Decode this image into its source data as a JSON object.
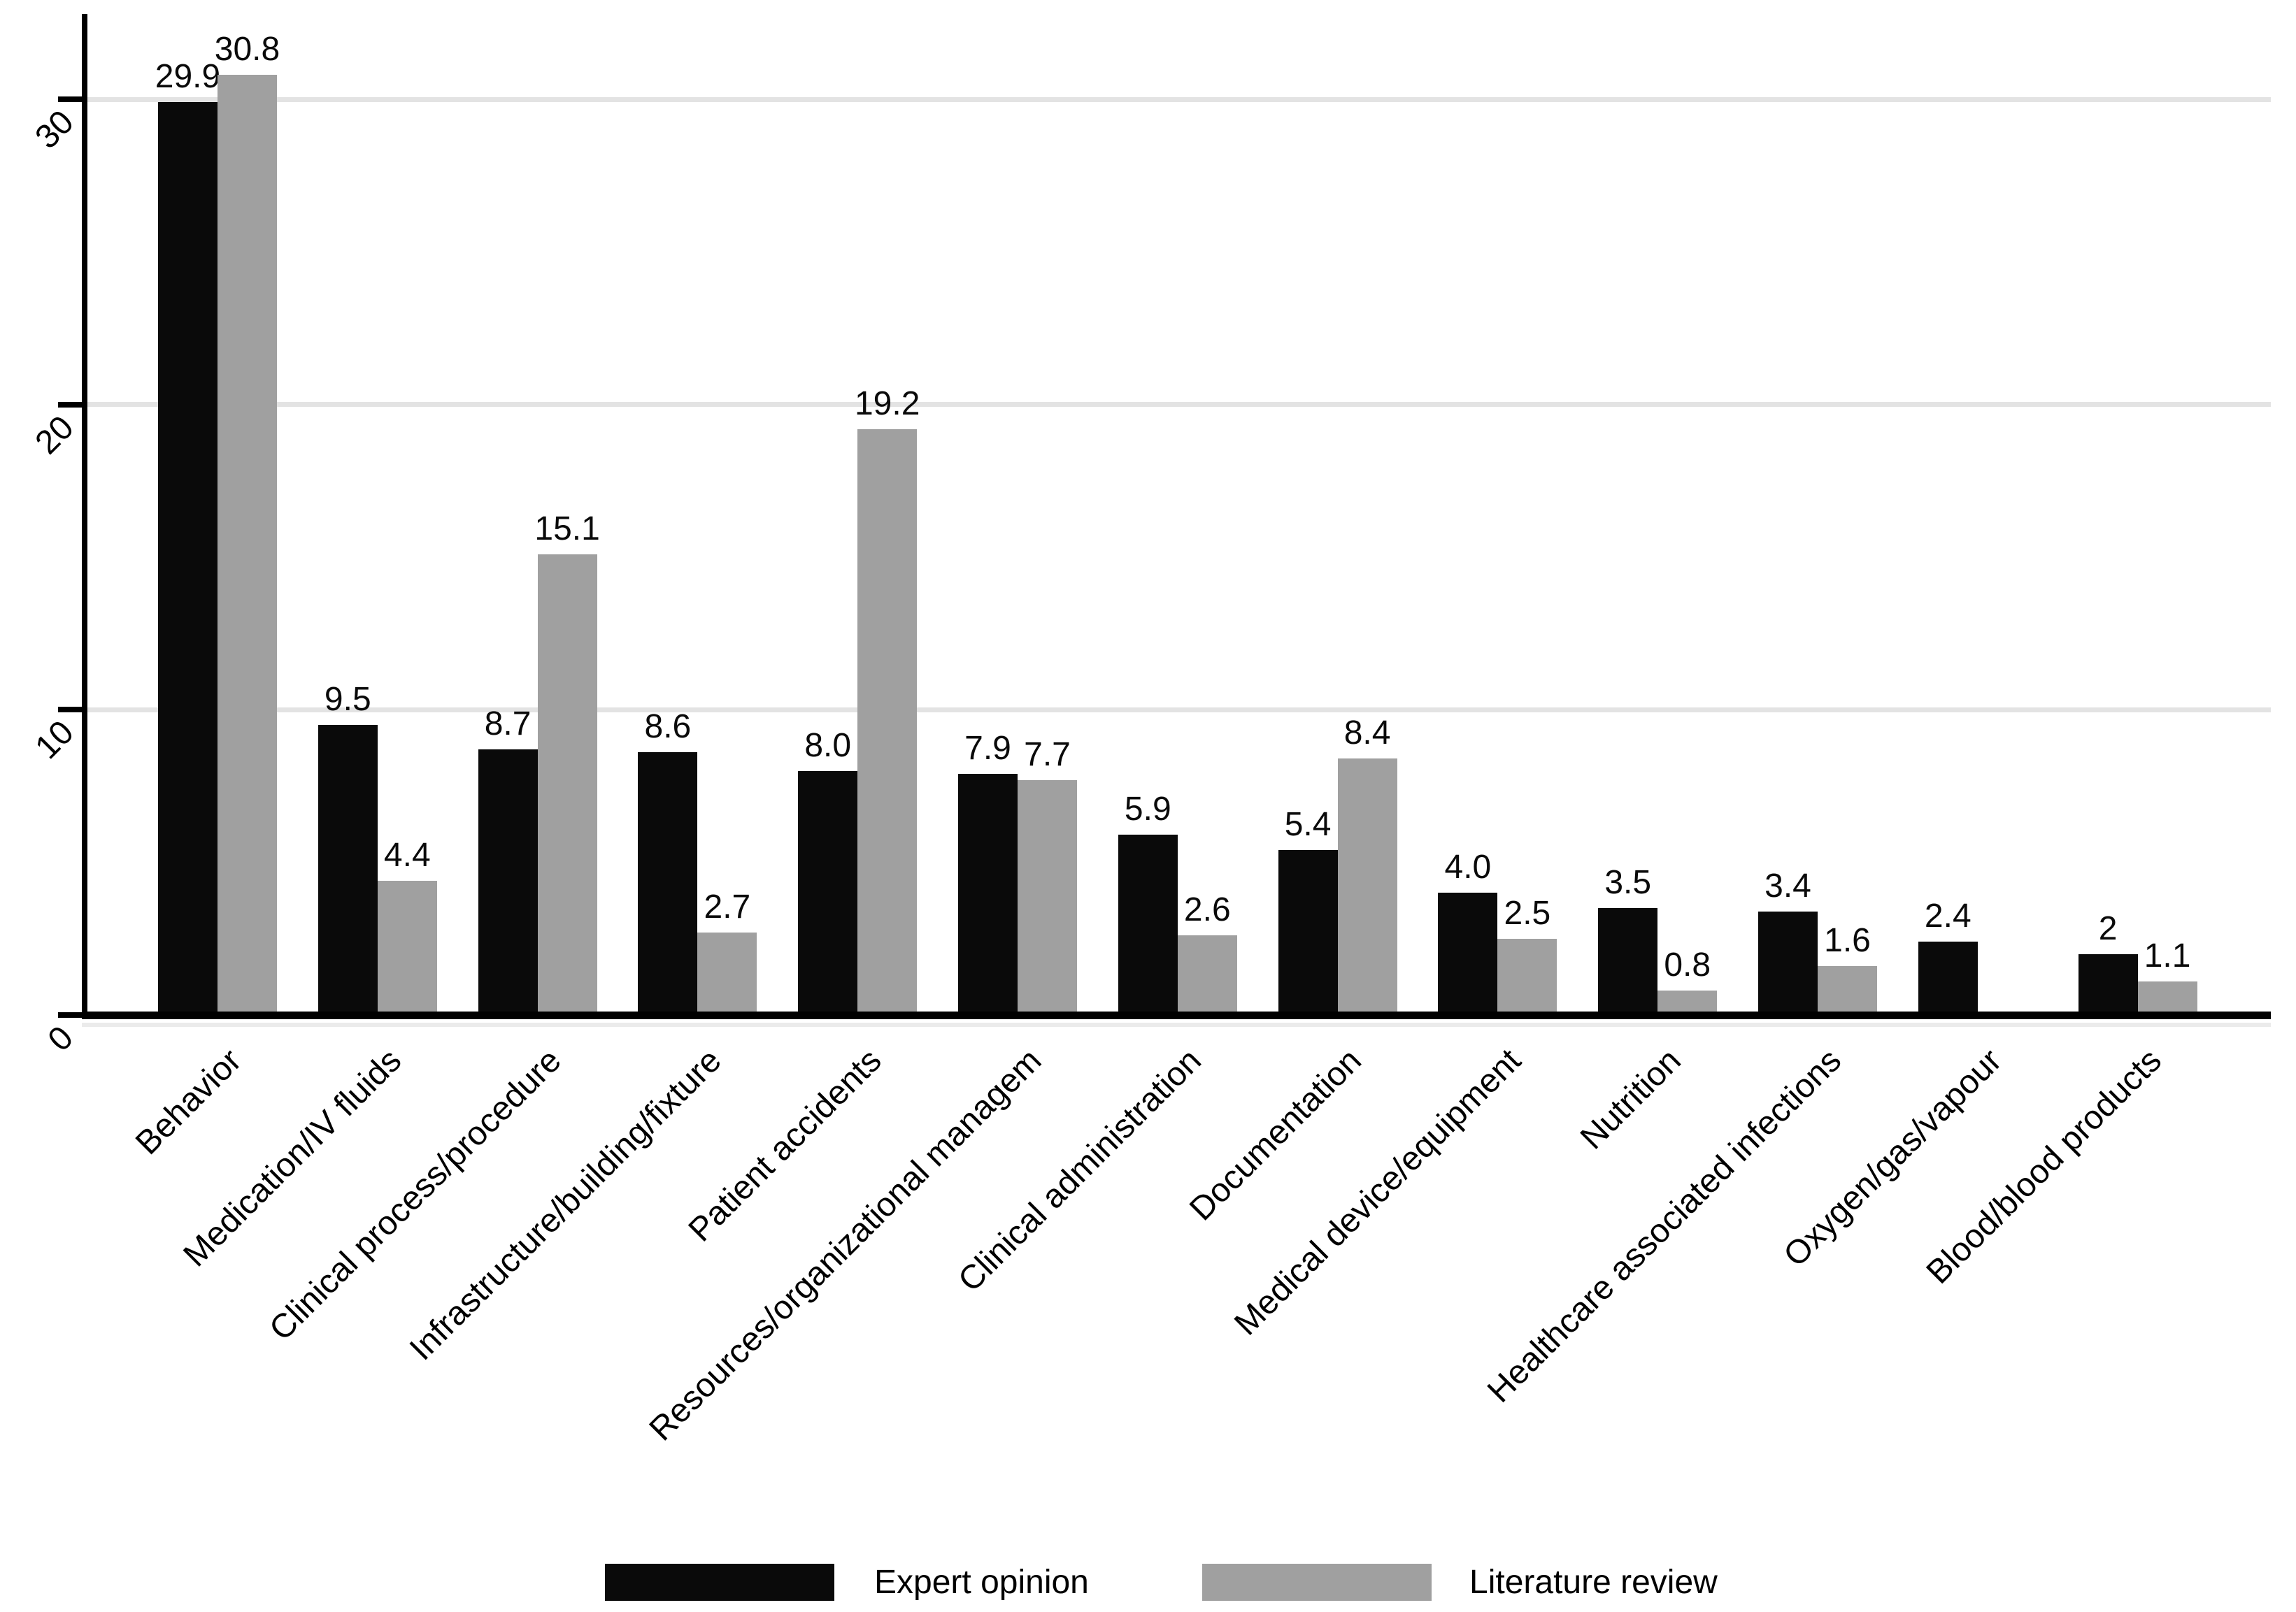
{
  "chart_data": {
    "type": "bar",
    "title": "",
    "xlabel": "",
    "ylabel": "",
    "categories": [
      "Behavior",
      "Medication/IV fluids",
      "Clinical process/procedure",
      "Infrastructure/building/fixture",
      "Patient accidents",
      "Resources/organizational managem",
      "Clinical administration",
      "Documentation",
      "Medical device/equipment",
      "Nutrition",
      "Healthcare associated infections",
      "Oxygen/gas/vapour",
      "Blood/blood products"
    ],
    "series": [
      {
        "name": "Expert opinion",
        "color": "#0a0a0a",
        "values": [
          29.9,
          9.5,
          8.7,
          8.6,
          8.0,
          7.9,
          5.9,
          5.4,
          4.0,
          3.5,
          3.4,
          2.4,
          2
        ],
        "labels": [
          "29.9",
          "9.5",
          "8.7",
          "8.6",
          "8.0",
          "7.9",
          "5.9",
          "5.4",
          "4.0",
          "3.5",
          "3.4",
          "2.4",
          "2"
        ]
      },
      {
        "name": "Literature review",
        "color": "#a0a0a0",
        "values": [
          30.8,
          4.4,
          15.1,
          2.7,
          19.2,
          7.7,
          2.6,
          8.4,
          2.5,
          0.8,
          1.6,
          null,
          1.1
        ],
        "labels": [
          "30.8",
          "4.4",
          "15.1",
          "2.7",
          "19.2",
          "7.7",
          "2.6",
          "8.4",
          "2.5",
          "0.8",
          "1.6",
          null,
          "1.1"
        ]
      }
    ],
    "yticks": [
      0,
      10,
      20,
      30
    ],
    "ytick_labels": [
      "0",
      "10",
      "20",
      "30"
    ],
    "ylim": [
      0,
      32.8
    ],
    "grid": true,
    "gridline_values": [
      10,
      20,
      30
    ],
    "legend_position": "bottom",
    "bar_label_decimals_shown": true
  },
  "legend": {
    "items": [
      {
        "label": "Expert opinion",
        "color": "#0a0a0a"
      },
      {
        "label": "Literature review",
        "color": "#a0a0a0"
      }
    ]
  },
  "colors": {
    "background": "#ffffff",
    "grid": "#e3e3e3",
    "axis": "#000000",
    "text": "#000000",
    "expert_opinion_bar": "#0a0a0a",
    "literature_review_bar": "#a0a0a0"
  }
}
